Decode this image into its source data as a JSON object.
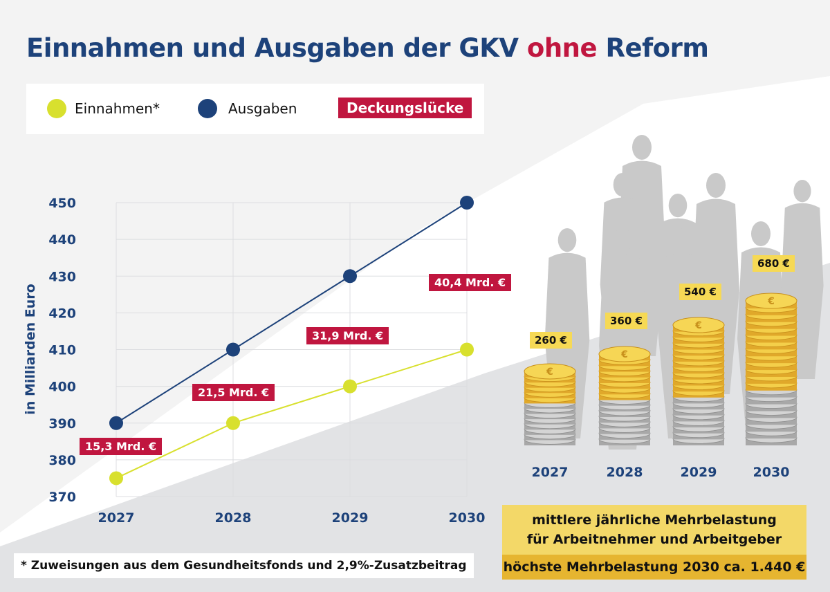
{
  "title": {
    "main": "Einnahmen und Ausgaben der GKV",
    "accent": "ohne",
    "tail": "Reform"
  },
  "colors": {
    "einnahmen": "#d8e02e",
    "ausgaben": "#1d427a",
    "deckungsluecke": "#c0163f",
    "price_tag": "#f6d955"
  },
  "legend": {
    "einnahmen": "Einnahmen*",
    "ausgaben": "Ausgaben",
    "deckungsluecke": "Deckungslücke"
  },
  "chart_data": {
    "type": "line",
    "ylabel": "in Milliarden Euro",
    "x": [
      "2027",
      "2028",
      "2029",
      "2030"
    ],
    "ylim": [
      370,
      450
    ],
    "yticks": [
      "370",
      "380",
      "390",
      "400",
      "410",
      "420",
      "430",
      "440",
      "450"
    ],
    "grid": true,
    "legend_placement": "top",
    "series": [
      {
        "name": "Einnahmen*",
        "values": [
          375,
          390,
          400,
          410
        ]
      },
      {
        "name": "Ausgaben",
        "values": [
          390,
          410,
          430,
          450
        ]
      }
    ],
    "annotations": [
      "15,3 Mrd. €",
      "21,5 Mrd. €",
      "31,9 Mrd. €",
      "40,4 Mrd. €"
    ]
  },
  "burden": {
    "years": [
      "2027",
      "2028",
      "2029",
      "2030"
    ],
    "amounts": [
      "260 €",
      "360 €",
      "540 €",
      "680 €"
    ],
    "box_line1": "mittlere jährliche Mehrbelastung",
    "box_line2": "für Arbeitnehmer und Arbeitgeber",
    "box_highlight": "höchste Mehrbelastung 2030 ca. 1.440 €"
  },
  "footnote": "* Zuweisungen aus dem Gesundheitsfonds und 2,9%-Zusatzbeitrag"
}
